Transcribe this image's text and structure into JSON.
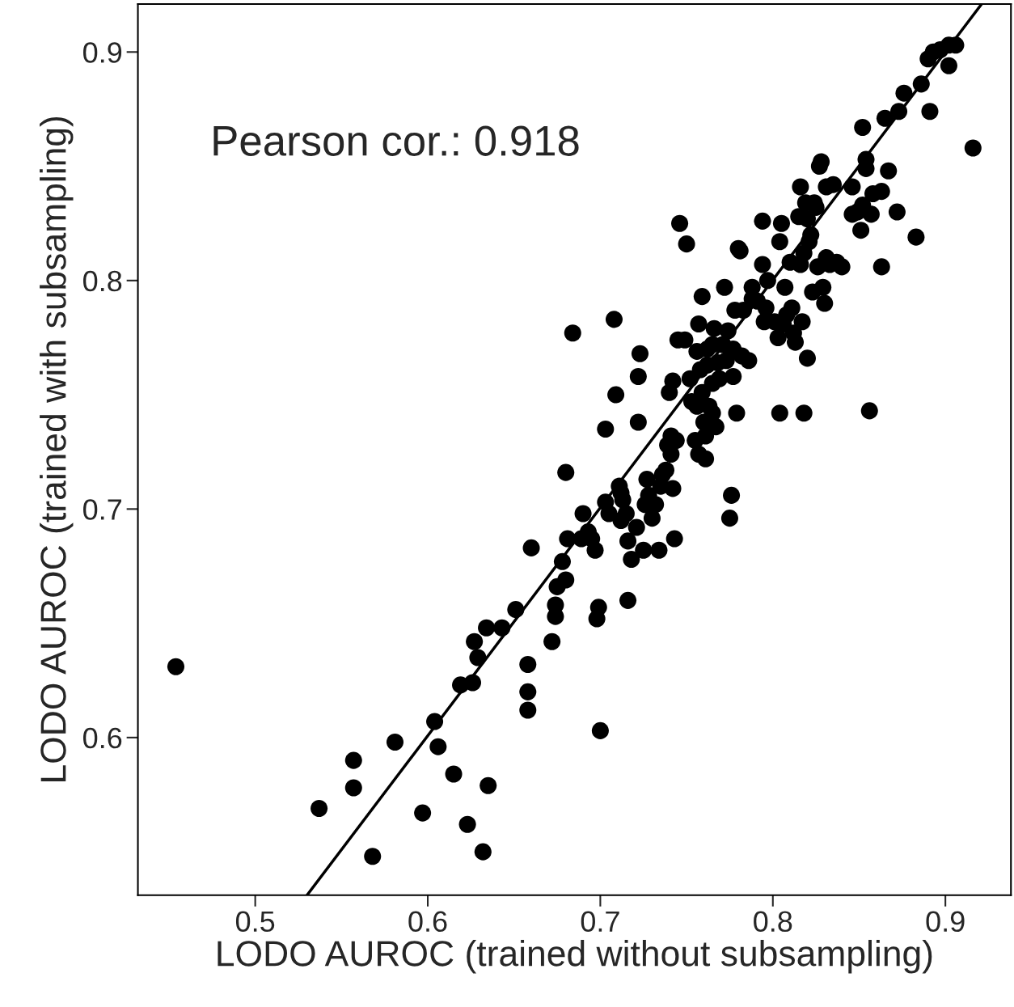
{
  "chart_data": {
    "type": "scatter",
    "xlabel": "LODO AUROC (trained without subsampling)",
    "ylabel": "LODO AUROC (trained with subsampling)",
    "annotations": [
      "Pearson cor.: 0.918"
    ],
    "xlim": [
      0.432,
      0.938
    ],
    "ylim": [
      0.531,
      0.921
    ],
    "xticks": [
      0.5,
      0.6,
      0.7,
      0.8,
      0.9
    ],
    "yticks": [
      0.6,
      0.7,
      0.8,
      0.9
    ],
    "grid": false,
    "legend": false,
    "series": [
      {
        "marker": "circle",
        "color": "#000000",
        "x": [
          0.454,
          0.537,
          0.557,
          0.557,
          0.568,
          0.581,
          0.597,
          0.604,
          0.606,
          0.615,
          0.619,
          0.623,
          0.626,
          0.627,
          0.629,
          0.634,
          0.635,
          0.632,
          0.643,
          0.651,
          0.66,
          0.658,
          0.658,
          0.658,
          0.672,
          0.674,
          0.674,
          0.675,
          0.678,
          0.68,
          0.681,
          0.684,
          0.68,
          0.689,
          0.69,
          0.693,
          0.695,
          0.697,
          0.698,
          0.699,
          0.7,
          0.703,
          0.703,
          0.705,
          0.708,
          0.709,
          0.711,
          0.712,
          0.712,
          0.713,
          0.715,
          0.716,
          0.716,
          0.718,
          0.721,
          0.722,
          0.722,
          0.723,
          0.725,
          0.726,
          0.727,
          0.728,
          0.73,
          0.732,
          0.734,
          0.735,
          0.736,
          0.738,
          0.739,
          0.74,
          0.741,
          0.741,
          0.742,
          0.742,
          0.743,
          0.744,
          0.745,
          0.746,
          0.75,
          0.749,
          0.752,
          0.753,
          0.755,
          0.756,
          0.756,
          0.757,
          0.757,
          0.758,
          0.759,
          0.759,
          0.76,
          0.761,
          0.761,
          0.762,
          0.762,
          0.763,
          0.765,
          0.765,
          0.765,
          0.766,
          0.767,
          0.768,
          0.769,
          0.771,
          0.772,
          0.773,
          0.774,
          0.775,
          0.776,
          0.777,
          0.777,
          0.778,
          0.779,
          0.78,
          0.781,
          0.782,
          0.783,
          0.786,
          0.788,
          0.788,
          0.791,
          0.794,
          0.794,
          0.795,
          0.796,
          0.797,
          0.801,
          0.803,
          0.804,
          0.804,
          0.805,
          0.806,
          0.807,
          0.808,
          0.81,
          0.811,
          0.812,
          0.813,
          0.815,
          0.816,
          0.816,
          0.817,
          0.818,
          0.818,
          0.819,
          0.82,
          0.82,
          0.821,
          0.822,
          0.823,
          0.824,
          0.825,
          0.826,
          0.827,
          0.828,
          0.829,
          0.83,
          0.831,
          0.831,
          0.833,
          0.835,
          0.837,
          0.84,
          0.846,
          0.846,
          0.849,
          0.851,
          0.852,
          0.852,
          0.854,
          0.854,
          0.856,
          0.857,
          0.858,
          0.863,
          0.863,
          0.865,
          0.867,
          0.872,
          0.873,
          0.876,
          0.883,
          0.886,
          0.891,
          0.893,
          0.897,
          0.902,
          0.902,
          0.906,
          0.916,
          0.89
        ],
        "values": [
          0.631,
          0.569,
          0.59,
          0.578,
          0.548,
          0.598,
          0.567,
          0.607,
          0.596,
          0.584,
          0.623,
          0.562,
          0.624,
          0.642,
          0.635,
          0.648,
          0.579,
          0.55,
          0.648,
          0.656,
          0.683,
          0.632,
          0.62,
          0.612,
          0.642,
          0.653,
          0.658,
          0.666,
          0.677,
          0.669,
          0.687,
          0.777,
          0.716,
          0.687,
          0.698,
          0.69,
          0.687,
          0.682,
          0.652,
          0.657,
          0.603,
          0.735,
          0.703,
          0.698,
          0.783,
          0.75,
          0.71,
          0.707,
          0.695,
          0.704,
          0.698,
          0.686,
          0.66,
          0.678,
          0.692,
          0.738,
          0.758,
          0.768,
          0.682,
          0.702,
          0.713,
          0.706,
          0.696,
          0.702,
          0.682,
          0.71,
          0.715,
          0.717,
          0.728,
          0.751,
          0.724,
          0.732,
          0.756,
          0.709,
          0.687,
          0.73,
          0.774,
          0.825,
          0.816,
          0.774,
          0.757,
          0.747,
          0.73,
          0.769,
          0.745,
          0.781,
          0.724,
          0.761,
          0.751,
          0.793,
          0.738,
          0.722,
          0.732,
          0.763,
          0.77,
          0.745,
          0.755,
          0.772,
          0.742,
          0.779,
          0.736,
          0.764,
          0.757,
          0.772,
          0.797,
          0.765,
          0.778,
          0.696,
          0.706,
          0.758,
          0.77,
          0.787,
          0.742,
          0.814,
          0.813,
          0.767,
          0.787,
          0.765,
          0.797,
          0.792,
          0.791,
          0.826,
          0.807,
          0.782,
          0.788,
          0.8,
          0.782,
          0.775,
          0.742,
          0.817,
          0.825,
          0.781,
          0.797,
          0.785,
          0.808,
          0.788,
          0.777,
          0.773,
          0.828,
          0.807,
          0.841,
          0.782,
          0.812,
          0.742,
          0.834,
          0.827,
          0.766,
          0.817,
          0.82,
          0.795,
          0.834,
          0.832,
          0.806,
          0.85,
          0.852,
          0.797,
          0.79,
          0.81,
          0.841,
          0.807,
          0.842,
          0.808,
          0.806,
          0.829,
          0.841,
          0.83,
          0.822,
          0.833,
          0.867,
          0.853,
          0.849,
          0.743,
          0.829,
          0.838,
          0.839,
          0.806,
          0.871,
          0.848,
          0.83,
          0.874,
          0.882,
          0.819,
          0.886,
          0.874,
          0.9,
          0.901,
          0.903,
          0.894,
          0.903,
          0.858,
          0.897
        ]
      },
      {
        "type": "line",
        "color": "#000000",
        "x": [
          0.53,
          0.921
        ],
        "values": [
          0.531,
          0.921
        ]
      }
    ]
  }
}
